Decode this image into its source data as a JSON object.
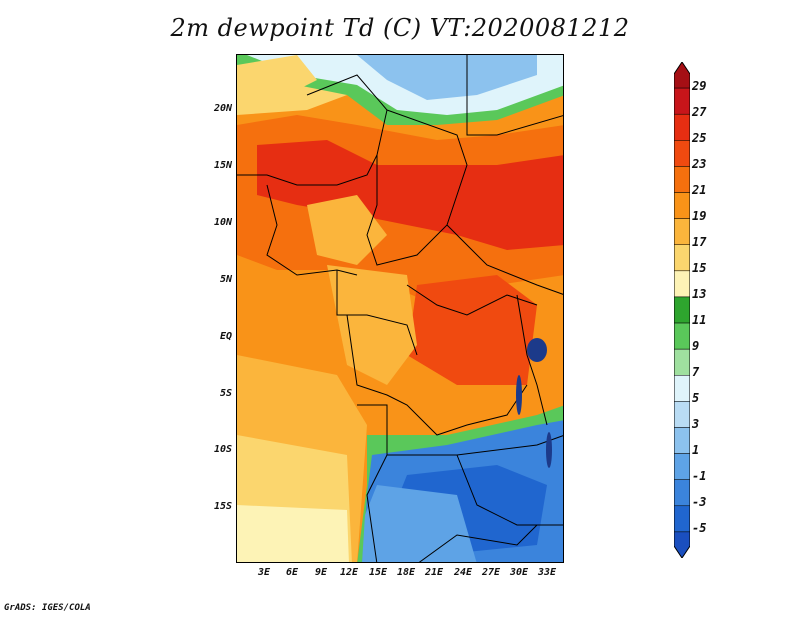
{
  "title": "2m dewpoint Td (C) VT:2020081212",
  "credit": "GrADS: IGES/COLA",
  "lat_labels": [
    "20N",
    "15N",
    "10N",
    "5N",
    "EQ",
    "5S",
    "10S",
    "15S"
  ],
  "lon_labels": [
    "3E",
    "6E",
    "9E",
    "12E",
    "15E",
    "18E",
    "21E",
    "24E",
    "27E",
    "30E",
    "33E"
  ],
  "colorbar": {
    "labels": [
      "29",
      "27",
      "25",
      "23",
      "21",
      "19",
      "17",
      "15",
      "13",
      "11",
      "9",
      "7",
      "5",
      "3",
      "1",
      "-1",
      "-3",
      "-5"
    ],
    "colors": [
      "#a50f15",
      "#c8151a",
      "#e62e12",
      "#f04a10",
      "#f5700e",
      "#f99318",
      "#fbb53c",
      "#fbd66e",
      "#fdf3b6",
      "#2ea52e",
      "#5ac85a",
      "#9fe09f",
      "#dff4fb",
      "#b9dcf4",
      "#8cc2ee",
      "#5ea3e6",
      "#3b84dc",
      "#2066cf",
      "#1a4fbf"
    ]
  },
  "legend_colors": {
    "land_border": "#000000",
    "lake": "#1c3a8a"
  }
}
